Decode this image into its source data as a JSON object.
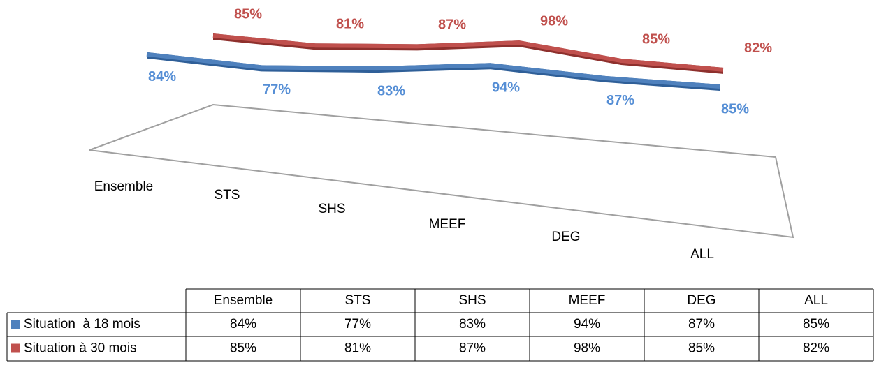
{
  "chart_data": {
    "type": "line",
    "categories": [
      "Ensemble",
      "STS",
      "SHS",
      "MEEF",
      "DEG",
      "ALL"
    ],
    "series": [
      {
        "name": "Situation  à 18 mois",
        "color": "#4f81bd",
        "values": [
          84,
          77,
          83,
          94,
          87,
          85
        ],
        "value_labels": [
          "84%",
          "77%",
          "83%",
          "94%",
          "87%",
          "85%"
        ]
      },
      {
        "name": "Situation à 30 mois",
        "color": "#c0504d",
        "values": [
          85,
          81,
          87,
          98,
          85,
          82
        ],
        "value_labels": [
          "85%",
          "81%",
          "87%",
          "98%",
          "85%",
          "82%"
        ]
      }
    ],
    "data_table": true
  }
}
